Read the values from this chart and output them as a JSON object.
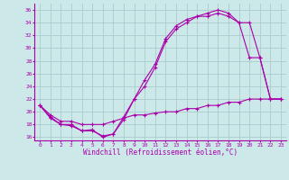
{
  "xlabel": "Windchill (Refroidissement éolien,°C)",
  "bg_color": "#cce8e8",
  "line_color": "#aa00aa",
  "grid_color": "#aacccc",
  "xlim": [
    -0.5,
    23.5
  ],
  "ylim": [
    15.5,
    37
  ],
  "yticks": [
    16,
    18,
    20,
    22,
    24,
    26,
    28,
    30,
    32,
    34,
    36
  ],
  "xticks": [
    0,
    1,
    2,
    3,
    4,
    5,
    6,
    7,
    8,
    9,
    10,
    11,
    12,
    13,
    14,
    15,
    16,
    17,
    18,
    19,
    20,
    21,
    22,
    23
  ],
  "line1_x": [
    0,
    1,
    2,
    3,
    4,
    5,
    6,
    7,
    8,
    9,
    10,
    11,
    12,
    13,
    14,
    15,
    16,
    17,
    18,
    19,
    20,
    21,
    22,
    23
  ],
  "line1_y": [
    21.0,
    19.2,
    18.0,
    17.8,
    17.0,
    17.2,
    16.0,
    16.5,
    19.2,
    22.0,
    25.0,
    27.5,
    31.5,
    33.5,
    34.5,
    35.0,
    35.5,
    36.0,
    35.5,
    34.0,
    28.5,
    28.5,
    22.0,
    22.0
  ],
  "line2_x": [
    0,
    1,
    2,
    3,
    4,
    5,
    6,
    7,
    8,
    9,
    10,
    11,
    12,
    13,
    14,
    15,
    16,
    17,
    18,
    19,
    20,
    21,
    22,
    23
  ],
  "line2_y": [
    21.0,
    19.0,
    18.0,
    18.0,
    17.0,
    17.0,
    16.2,
    16.5,
    18.8,
    22.0,
    24.0,
    27.0,
    31.0,
    33.0,
    34.0,
    35.0,
    35.0,
    35.5,
    35.0,
    34.0,
    34.0,
    28.5,
    22.0,
    22.0
  ],
  "line3_x": [
    0,
    1,
    2,
    3,
    4,
    5,
    6,
    7,
    8,
    9,
    10,
    11,
    12,
    13,
    14,
    15,
    16,
    17,
    18,
    19,
    20,
    21,
    22,
    23
  ],
  "line3_y": [
    21.0,
    19.5,
    18.5,
    18.5,
    18.0,
    18.0,
    18.0,
    18.5,
    19.0,
    19.5,
    19.5,
    19.8,
    20.0,
    20.0,
    20.5,
    20.5,
    21.0,
    21.0,
    21.5,
    21.5,
    22.0,
    22.0,
    22.0,
    22.0
  ]
}
